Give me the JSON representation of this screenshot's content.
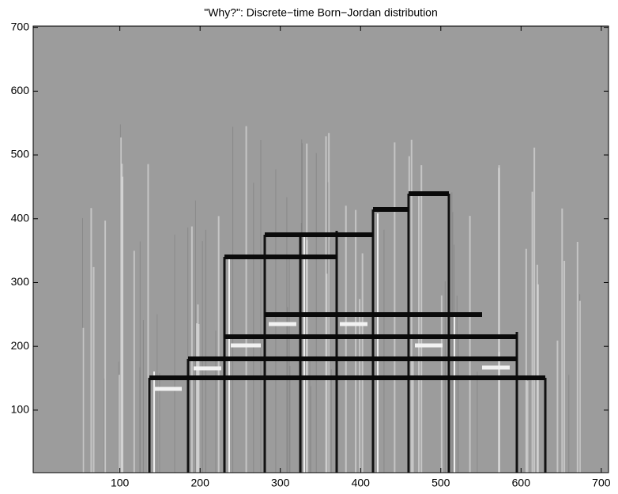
{
  "chart_data": {
    "type": "image",
    "title": "\"Why?\": Discrete−time Born−Jordan distribution",
    "xlim": [
      -8,
      709
    ],
    "ylim": [
      2,
      702
    ],
    "xticks": [
      100,
      200,
      300,
      400,
      500,
      600,
      700
    ],
    "yticks": [
      100,
      200,
      300,
      400,
      500,
      600,
      700
    ]
  }
}
